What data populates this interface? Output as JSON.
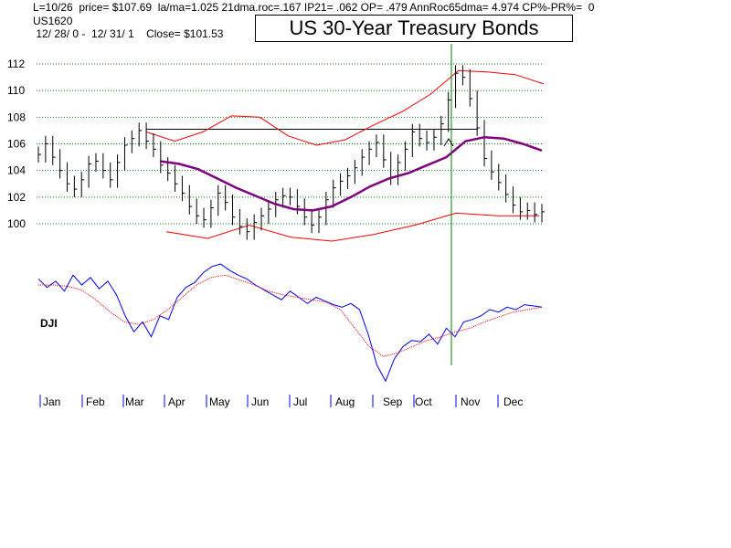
{
  "header": {
    "line1": "L=10/26  price= $107.69  la/ma=1.025 21dma.roc=.167 IP21= .062 OP= .479 AnnRoc65dma= 4.974 CP%-PR%=  0",
    "line2": "US1620",
    "line3": " 12/ 28/ 0 -  12/ 31/ 1    Close= $101.53"
  },
  "chart_data": {
    "type": "line",
    "title": "US 30-Year Treasury Bonds",
    "x_months": [
      "Jan",
      "Feb",
      "Mar",
      "Apr",
      "May",
      "Jun",
      "Jul",
      "Aug",
      "Sep",
      "Oct",
      "Nov",
      "Dec"
    ],
    "price_panel": {
      "yticks": [
        "112",
        "110",
        "108",
        "106",
        "104",
        "102",
        "100"
      ],
      "ylim": [
        98.5,
        112.8
      ],
      "gridlines": [
        100,
        102,
        104,
        106,
        108,
        110,
        112
      ],
      "price_bars_close": [
        105.2,
        106.0,
        105.0,
        104.0,
        103.0,
        102.6,
        103.3,
        104.5,
        104.7,
        104.0,
        103.3,
        104.6,
        105.9,
        106.4,
        107.0,
        106.2,
        105.6,
        104.4,
        103.8,
        103.0,
        102.3,
        101.3,
        100.6,
        100.3,
        101.2,
        102.3,
        101.6,
        100.5,
        99.8,
        99.4,
        100.1,
        100.6,
        101.1,
        101.8,
        102.1,
        102.0,
        101.3,
        100.5,
        99.9,
        100.5,
        101.8,
        102.7,
        103.2,
        103.6,
        104.2,
        105.0,
        105.6,
        106.1,
        104.8,
        103.5,
        104.6,
        105.6,
        106.9,
        106.4,
        106.1,
        106.5,
        107.5,
        109.3,
        111.3,
        111.0,
        109.4,
        107.2,
        104.9,
        103.9,
        103.1,
        102.2,
        101.4,
        100.9,
        101.0,
        100.7,
        100.9
      ],
      "ma_values": [
        104.7,
        104.5,
        104.1,
        103.4,
        102.7,
        102.1,
        101.5,
        101.1,
        101.0,
        101.3,
        102.0,
        102.8,
        103.4,
        103.8,
        104.4,
        105.0,
        106.2,
        106.5,
        106.4,
        106.0,
        105.5
      ],
      "upper_band": [
        106.9,
        106.2,
        106.9,
        108.1,
        108.0,
        106.6,
        105.9,
        106.3,
        107.4,
        108.4,
        109.7,
        111.5,
        111.4,
        111.2,
        110.5
      ],
      "lower_band": [
        99.4,
        98.9,
        99.9,
        99.0,
        98.7,
        99.2,
        99.9,
        100.8,
        100.6,
        100.6
      ],
      "resistance_level": 107.1,
      "resistance_range": [
        "Mar",
        "Oct"
      ],
      "event_line_month": "Oct"
    },
    "dji_panel": {
      "label": "DJI",
      "series": [
        {
          "name": "",
          "color": "#0000ee"
        },
        {
          "name": "",
          "color": "#ff0000"
        }
      ]
    },
    "colors": {
      "grid": "#008000",
      "price_bars": "#000000",
      "moving_average": "#800080",
      "bands": "#ff0000",
      "dji": "#0000ee",
      "dji_ma": "#ff0000",
      "event_line": "#008000",
      "month_ticks": "#0000ff"
    }
  }
}
